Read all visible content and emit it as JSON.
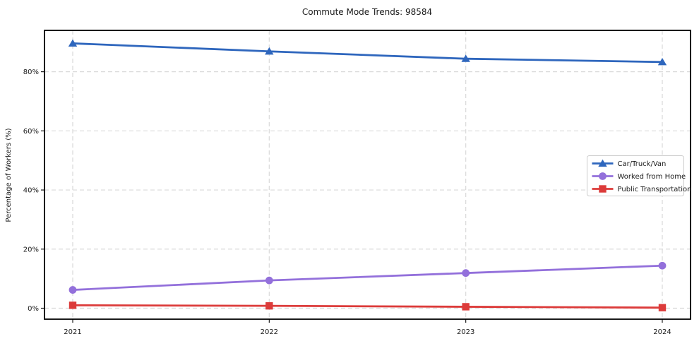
{
  "figure": {
    "background": "#ffffff",
    "frame_color": "#000000",
    "grid_color": "#d9d9d9",
    "text_color": "#1a1a1a"
  },
  "chart_data": {
    "type": "line",
    "title": "Commute Mode Trends: 98584",
    "xlabel": "",
    "ylabel": "Percentage of Workers (%)",
    "x_categories": [
      "2021",
      "2022",
      "2023",
      "2024"
    ],
    "y_tick_values": [
      0,
      20,
      40,
      60,
      80
    ],
    "y_tick_labels": [
      "0%",
      "20%",
      "40%",
      "60%",
      "80%"
    ],
    "ylim": [
      -3.7,
      94.0
    ],
    "grid": true,
    "grid_style": "dashed",
    "legend_position": "center-right",
    "legend_entries": [
      "Car/Truck/Van",
      "Worked from Home",
      "Public Transportation"
    ],
    "series": [
      {
        "name": "Car/Truck/Van",
        "color": "#2e66bd",
        "marker": "triangle",
        "values": [
          89.6,
          86.9,
          84.4,
          83.3
        ]
      },
      {
        "name": "Worked from Home",
        "color": "#9370db",
        "marker": "circle",
        "values": [
          6.2,
          9.4,
          11.9,
          14.4
        ]
      },
      {
        "name": "Public Transportation",
        "color": "#dc3b3a",
        "marker": "square",
        "values": [
          1.0,
          0.8,
          0.5,
          0.2
        ]
      }
    ]
  }
}
